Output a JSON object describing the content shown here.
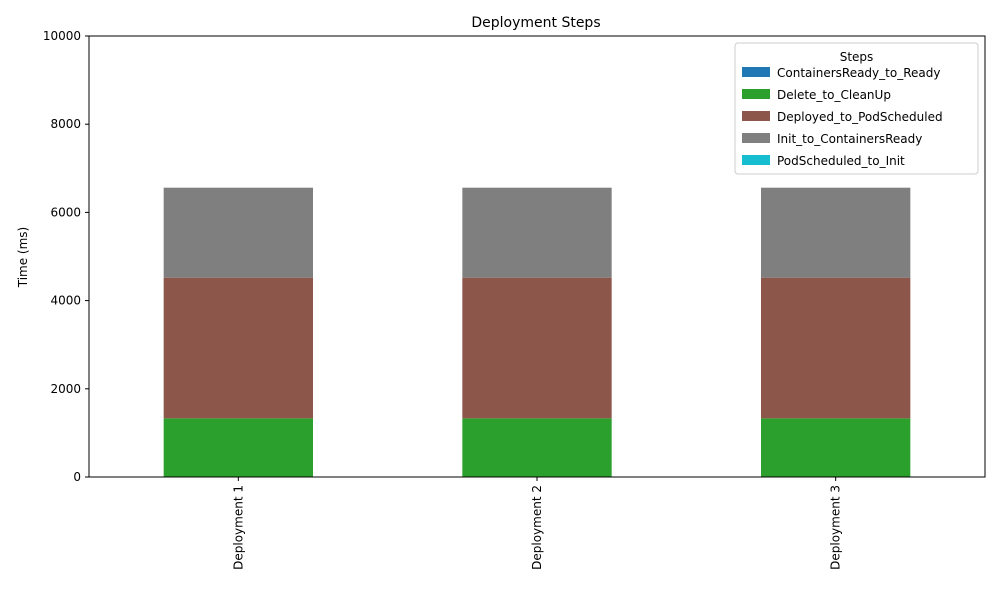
{
  "chart_data": {
    "type": "bar",
    "stacked": true,
    "title": "Deployment Steps",
    "xlabel": "",
    "ylabel": "Time (ms)",
    "ylim": [
      0,
      10000
    ],
    "yticks": [
      0,
      2000,
      4000,
      6000,
      8000,
      10000
    ],
    "categories": [
      "Deployment 1",
      "Deployment 2",
      "Deployment 3"
    ],
    "legend": {
      "title": "Steps",
      "placement": "top-right"
    },
    "grid": false,
    "series": [
      {
        "name": "ContainersReady_to_Ready",
        "color": "#1f77b4",
        "values": [
          0,
          0,
          0
        ]
      },
      {
        "name": "Delete_to_CleanUp",
        "color": "#2ca02c",
        "values": [
          1330,
          1330,
          1330
        ]
      },
      {
        "name": "Deployed_to_PodScheduled",
        "color": "#8c564b",
        "values": [
          3190,
          3190,
          3190
        ]
      },
      {
        "name": "Init_to_ContainersReady",
        "color": "#7f7f7f",
        "values": [
          2040,
          2040,
          2040
        ]
      },
      {
        "name": "PodScheduled_to_Init",
        "color": "#17becf",
        "values": [
          0,
          0,
          0
        ]
      }
    ]
  }
}
